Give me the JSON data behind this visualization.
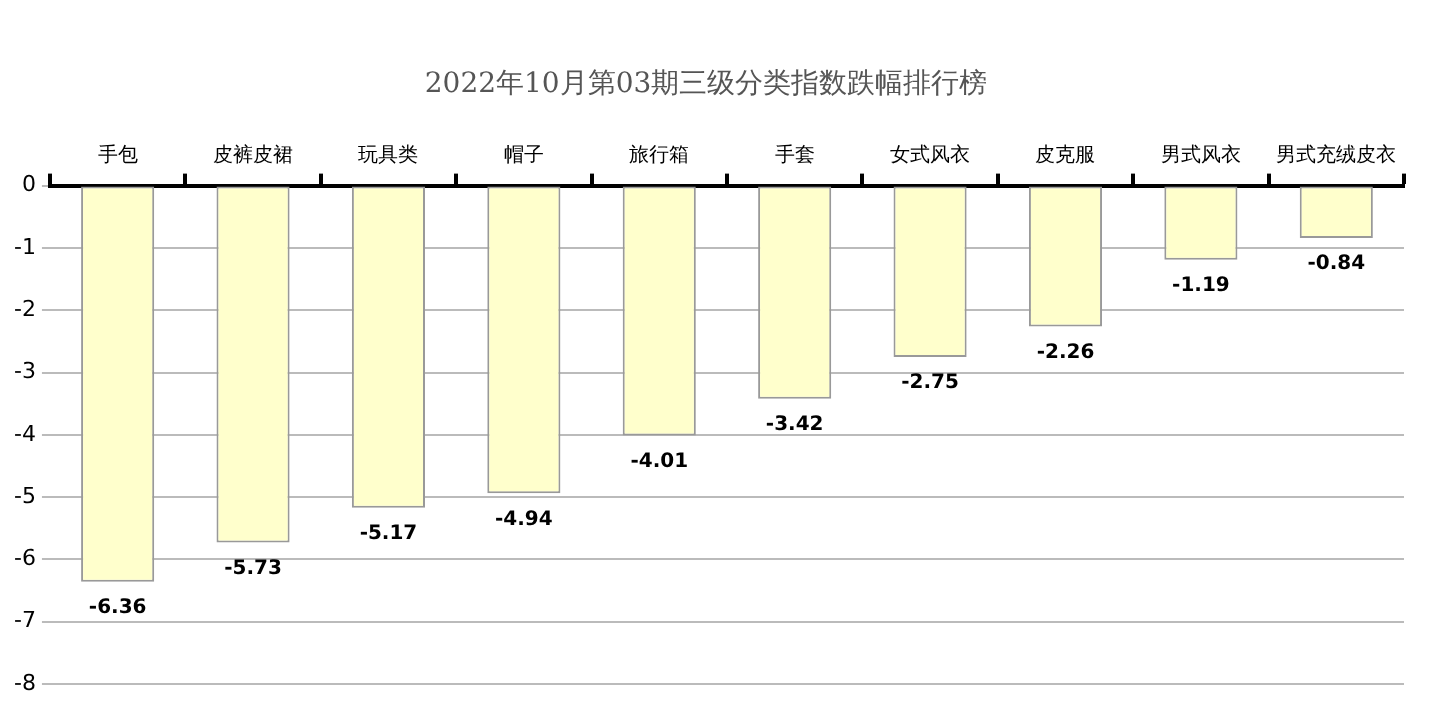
{
  "chart_data": {
    "type": "bar",
    "title": "2022年10月第03期三级分类指数跌幅排行榜",
    "categories": [
      "手包",
      "皮裤皮裙",
      "玩具类",
      "帽子",
      "旅行箱",
      "手套",
      "女式风衣",
      "皮克服",
      "男式风衣",
      "男式充绒皮衣"
    ],
    "values": [
      -6.36,
      -5.73,
      -5.17,
      -4.94,
      -4.01,
      -3.42,
      -2.75,
      -2.26,
      -1.19,
      -0.84
    ],
    "color": "#ffffcc",
    "ylim": [
      -8,
      0
    ],
    "yticks": [
      -8,
      -7,
      -6,
      -5,
      -4,
      -3,
      -2,
      -1,
      0
    ],
    "grid": "y",
    "data_labels": true
  }
}
